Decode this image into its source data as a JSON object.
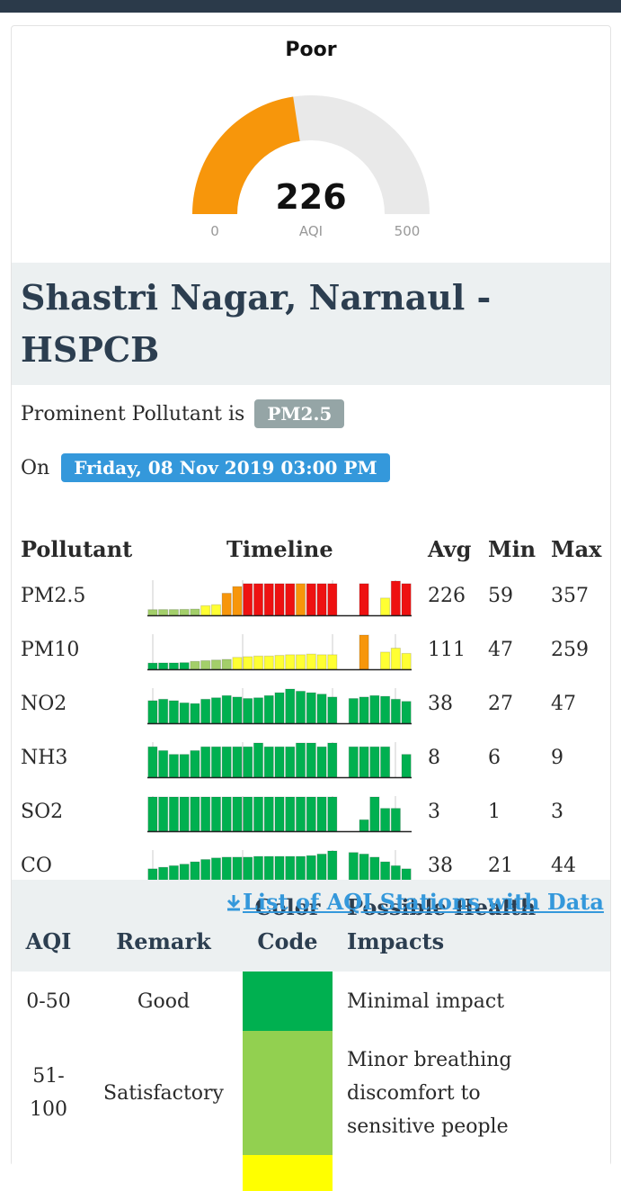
{
  "gauge": {
    "remark": "Poor",
    "value": 226,
    "min": 0,
    "max": 500,
    "unit": "AQI",
    "color": "#f7960b",
    "track_color": "#e9e9e9"
  },
  "station": {
    "name": "Shastri Nagar, Narnaul - HSPCB"
  },
  "prominent": {
    "label": "Prominent Pollutant is",
    "pollutant": "PM2.5"
  },
  "date": {
    "label": "On",
    "value": "Friday, 08 Nov 2019 03:00 PM"
  },
  "pollutant_table": {
    "headers": [
      "Pollutant",
      "Timeline",
      "Avg",
      "Min",
      "Max"
    ],
    "rows": [
      {
        "name": "PM2.5",
        "avg": 226,
        "min": 59,
        "max": 357,
        "timeline": [
          59,
          60,
          60,
          62,
          65,
          100,
          110,
          230,
          300,
          330,
          330,
          330,
          330,
          330,
          330,
          330,
          330,
          330,
          null,
          null,
          330,
          null,
          180,
          357,
          330
        ],
        "colors": [
          "#a3cf6a",
          "#a3cf6a",
          "#a3cf6a",
          "#a3cf6a",
          "#a3cf6a",
          "#ffff33",
          "#ffff33",
          "#f7960b",
          "#f7960b",
          "#ee1111",
          "#ee1111",
          "#ee1111",
          "#ee1111",
          "#ee1111",
          "#f7960b",
          "#ee1111",
          "#ee1111",
          "#ee1111",
          null,
          null,
          "#ee1111",
          null,
          "#ffff33",
          "#ee1111",
          "#ee1111"
        ]
      },
      {
        "name": "PM10",
        "avg": 111,
        "min": 47,
        "max": 259,
        "timeline": [
          47,
          48,
          48,
          50,
          60,
          65,
          70,
          75,
          90,
          95,
          100,
          100,
          105,
          110,
          110,
          115,
          110,
          110,
          null,
          null,
          259,
          null,
          130,
          160,
          120
        ],
        "colors": [
          "#00b050",
          "#00b050",
          "#00b050",
          "#00b050",
          "#a3cf6a",
          "#a3cf6a",
          "#a3cf6a",
          "#a3cf6a",
          "#ffff33",
          "#ffff33",
          "#ffff33",
          "#ffff33",
          "#ffff33",
          "#ffff33",
          "#ffff33",
          "#ffff33",
          "#ffff33",
          "#ffff33",
          null,
          null,
          "#f7960b",
          null,
          "#ffff33",
          "#ffff33",
          "#ffff33"
        ]
      },
      {
        "name": "NO2",
        "avg": 38,
        "min": 27,
        "max": 47,
        "color": "#00b050",
        "timeline": [
          31,
          33,
          31,
          28,
          27,
          33,
          35,
          38,
          36,
          34,
          35,
          38,
          42,
          47,
          44,
          42,
          40,
          36,
          null,
          34,
          36,
          38,
          37,
          33,
          30
        ]
      },
      {
        "name": "NH3",
        "avg": 8,
        "min": 6,
        "max": 9,
        "color": "#00b050",
        "timeline": [
          8,
          7,
          6,
          6,
          7,
          8,
          8,
          8,
          8,
          8,
          9,
          8,
          8,
          8,
          9,
          9,
          8,
          9,
          null,
          8,
          8,
          8,
          8,
          null,
          6
        ]
      },
      {
        "name": "SO2",
        "avg": 3,
        "min": 1,
        "max": 3,
        "color": "#00b050",
        "timeline": [
          3,
          3,
          3,
          3,
          3,
          3,
          3,
          3,
          3,
          3,
          3,
          3,
          3,
          3,
          3,
          3,
          3,
          3,
          null,
          null,
          1,
          3,
          2,
          2,
          null
        ]
      },
      {
        "name": "CO",
        "avg": 38,
        "min": 21,
        "max": 44,
        "color": "#00b050",
        "timeline": [
          21,
          23,
          25,
          27,
          30,
          33,
          35,
          36,
          36,
          36,
          37,
          37,
          37,
          37,
          37,
          38,
          40,
          44,
          null,
          42,
          40,
          36,
          30,
          25,
          21
        ]
      }
    ]
  },
  "link": "List of AQI Stations with Data",
  "aqi_table": {
    "headers": [
      "AQI",
      "Remark",
      "Color Code",
      "Possible Health Impacts"
    ],
    "rows": [
      {
        "range": "0-50",
        "remark": "Good",
        "color": "#00b050",
        "impact": "Minimal impact"
      },
      {
        "range": "51-100",
        "remark": "Satisfactory",
        "color": "#92d050",
        "impact": "Minor breathing discomfort to sensitive people"
      },
      {
        "color": "#ffff00"
      }
    ]
  }
}
